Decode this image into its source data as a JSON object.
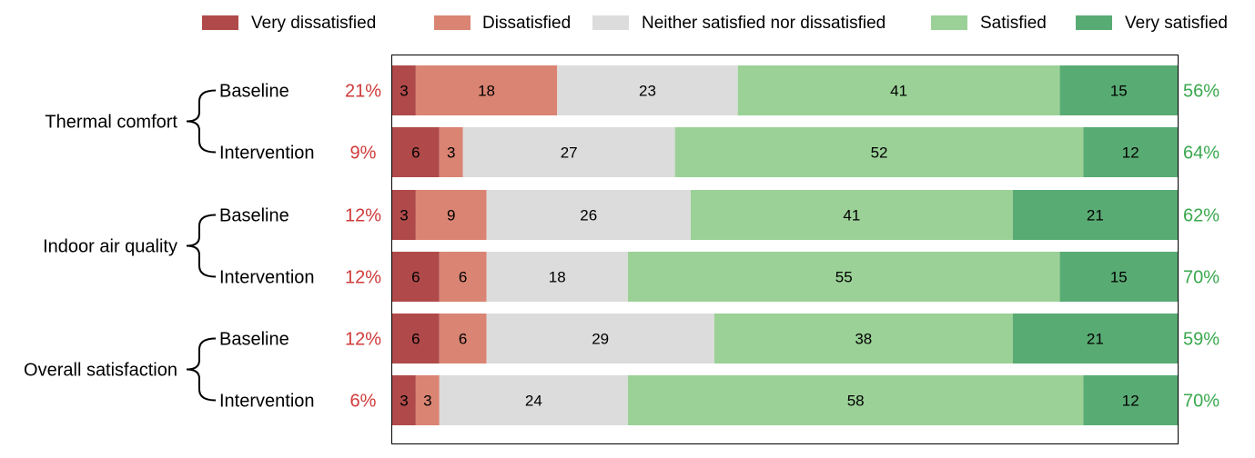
{
  "chart_data": {
    "type": "bar",
    "orientation": "horizontal-stacked-100",
    "legend_placement": "top",
    "xlim": [
      0,
      100
    ],
    "categories_per_bar": [
      "Very dissatisfied",
      "Dissatisfied",
      "Neither satisfied nor dissatisfied",
      "Satisfied",
      "Very satisfied"
    ],
    "legend": [
      {
        "label": "Very dissatisfied",
        "color": "#b04a4a"
      },
      {
        "label": "Dissatisfied",
        "color": "#da8473"
      },
      {
        "label": "Neither satisfied nor dissatisfied",
        "color": "#dcdcdc"
      },
      {
        "label": "Satisfied",
        "color": "#9bd197"
      },
      {
        "label": "Very satisfied",
        "color": "#59ab74"
      }
    ],
    "groups": [
      {
        "label": "Thermal comfort",
        "rows": [
          {
            "label": "Baseline",
            "values": [
              3,
              18,
              23,
              41,
              15
            ],
            "neg_total": "21%",
            "pos_total": "56%"
          },
          {
            "label": "Intervention",
            "values": [
              6,
              3,
              27,
              52,
              12
            ],
            "neg_total": "9%",
            "pos_total": "64%"
          }
        ]
      },
      {
        "label": "Indoor air quality",
        "rows": [
          {
            "label": "Baseline",
            "values": [
              3,
              9,
              26,
              41,
              21
            ],
            "neg_total": "12%",
            "pos_total": "62%"
          },
          {
            "label": "Intervention",
            "values": [
              6,
              6,
              18,
              55,
              15
            ],
            "neg_total": "12%",
            "pos_total": "70%"
          }
        ]
      },
      {
        "label": "Overall satisfaction",
        "rows": [
          {
            "label": "Baseline",
            "values": [
              6,
              6,
              29,
              38,
              21
            ],
            "neg_total": "12%",
            "pos_total": "59%"
          },
          {
            "label": "Intervention",
            "values": [
              3,
              3,
              24,
              58,
              12
            ],
            "neg_total": "6%",
            "pos_total": "70%"
          }
        ]
      }
    ],
    "neg_total_color": "#d03a3a",
    "pos_total_color": "#3aa84e"
  }
}
